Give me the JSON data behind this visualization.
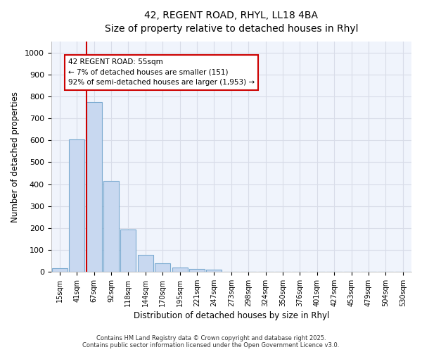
{
  "title_line1": "42, REGENT ROAD, RHYL, LL18 4BA",
  "title_line2": "Size of property relative to detached houses in Rhyl",
  "xlabel": "Distribution of detached houses by size in Rhyl",
  "ylabel": "Number of detached properties",
  "categories": [
    "15sqm",
    "41sqm",
    "67sqm",
    "92sqm",
    "118sqm",
    "144sqm",
    "170sqm",
    "195sqm",
    "221sqm",
    "247sqm",
    "273sqm",
    "298sqm",
    "324sqm",
    "350sqm",
    "376sqm",
    "401sqm",
    "427sqm",
    "453sqm",
    "479sqm",
    "504sqm",
    "530sqm"
  ],
  "values": [
    15,
    605,
    775,
    415,
    192,
    78,
    40,
    18,
    12,
    10,
    0,
    0,
    0,
    0,
    0,
    0,
    0,
    0,
    0,
    0,
    0
  ],
  "bar_color": "#c8d8f0",
  "bar_edge_color": "#7aaad0",
  "vline_x_idx": 1.57,
  "vline_color": "#cc0000",
  "annotation_text": "42 REGENT ROAD: 55sqm\n← 7% of detached houses are smaller (151)\n92% of semi-detached houses are larger (1,953) →",
  "annotation_box_color": "#ffffff",
  "annotation_box_edge": "#cc0000",
  "ylim": [
    0,
    1050
  ],
  "yticks": [
    0,
    100,
    200,
    300,
    400,
    500,
    600,
    700,
    800,
    900,
    1000
  ],
  "bg_color": "#ffffff",
  "plot_bg_color": "#f0f4fc",
  "grid_color": "#d8dce8",
  "footer": "Contains HM Land Registry data © Crown copyright and database right 2025.\nContains public sector information licensed under the Open Government Licence v3.0."
}
